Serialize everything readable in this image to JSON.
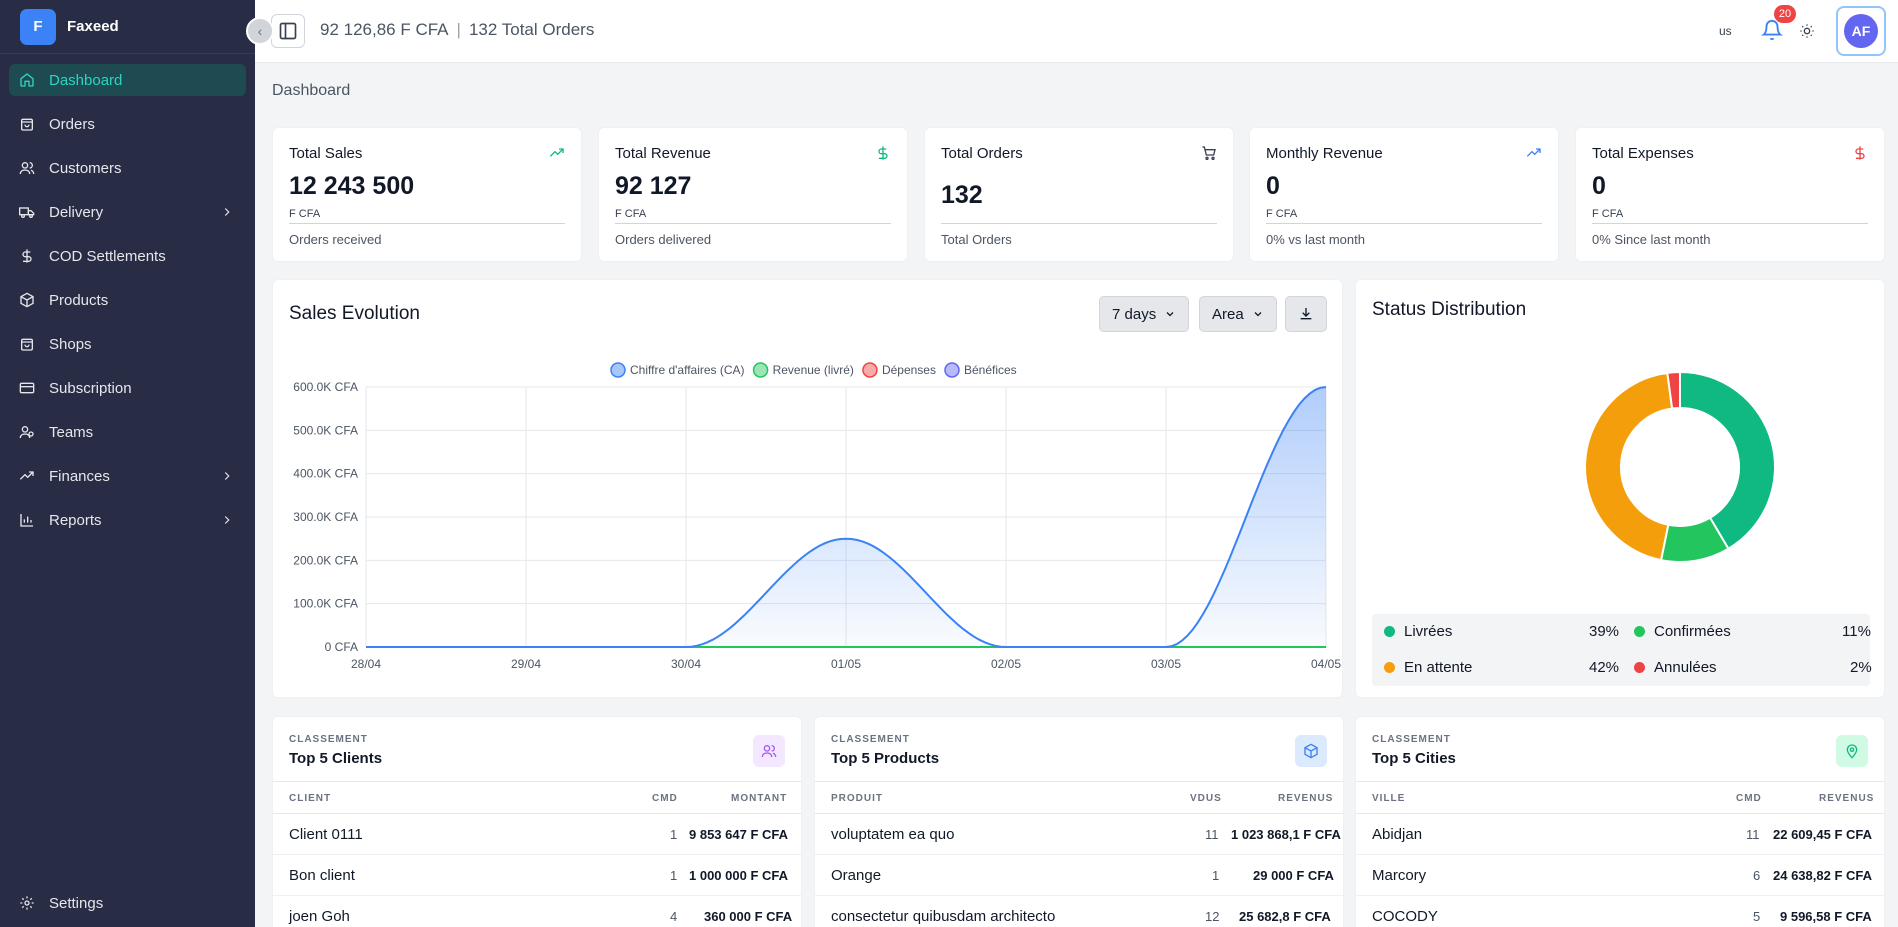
{
  "brand": {
    "logo_letter": "F",
    "name": "Faxeed"
  },
  "sidebar": {
    "items": [
      {
        "label": "Dashboard",
        "icon": "home-icon"
      },
      {
        "label": "Orders",
        "icon": "bag-icon"
      },
      {
        "label": "Customers",
        "icon": "users-icon"
      },
      {
        "label": "Delivery",
        "icon": "truck-icon"
      },
      {
        "label": "COD Settlements",
        "icon": "dollar-icon"
      },
      {
        "label": "Products",
        "icon": "box-icon"
      },
      {
        "label": "Shops",
        "icon": "store-icon"
      },
      {
        "label": "Subscription",
        "icon": "card-icon"
      },
      {
        "label": "Teams",
        "icon": "team-icon"
      },
      {
        "label": "Finances",
        "icon": "trend-icon"
      },
      {
        "label": "Reports",
        "icon": "bar-chart-icon"
      }
    ],
    "settings_label": "Settings"
  },
  "topbar": {
    "amount": "92 126,86 F CFA",
    "orders": "132 Total Orders",
    "lang": "us",
    "notifications": "20",
    "avatar": "AF"
  },
  "page_title": "Dashboard",
  "kpis": [
    {
      "title": "Total Sales",
      "value": "12 243 500",
      "unit": "F CFA",
      "sub": "Orders received",
      "icon": "trend-up-icon",
      "color": "#10b981"
    },
    {
      "title": "Total Revenue",
      "value": "92 127",
      "unit": "F CFA",
      "sub": "Orders delivered",
      "icon": "dollar-icon",
      "color": "#10b981"
    },
    {
      "title": "Total Orders",
      "value": "132",
      "unit": "",
      "sub": "Total Orders",
      "icon": "cart-icon",
      "color": "#374151"
    },
    {
      "title": "Monthly Revenue",
      "value": "0",
      "unit": "F CFA",
      "sub": "0% vs last month",
      "icon": "trend-up-icon",
      "color": "#3b82f6"
    },
    {
      "title": "Total Expenses",
      "value": "0",
      "unit": "F CFA",
      "sub": "0% Since last month",
      "icon": "dollar-icon",
      "color": "#ef4444"
    }
  ],
  "sales": {
    "title": "Sales Evolution",
    "period": "7 days",
    "chart_type_label": "Area"
  },
  "chart_data": {
    "type": "area",
    "categories": [
      "28/04",
      "29/04",
      "30/04",
      "01/05",
      "02/05",
      "03/05",
      "04/05"
    ],
    "series": [
      {
        "name": "Chiffre d'affaires (CA)",
        "values": [
          0,
          0,
          0,
          250000,
          0,
          0,
          600000
        ],
        "color": "#3b82f6"
      },
      {
        "name": "Revenue (livré)",
        "values": [
          0,
          0,
          0,
          0,
          0,
          0,
          0
        ],
        "color": "#22c55e"
      },
      {
        "name": "Dépenses",
        "values": [
          0,
          0,
          0,
          0,
          0,
          0,
          0
        ],
        "color": "#ef4444"
      },
      {
        "name": "Bénéfices",
        "values": [
          0,
          0,
          0,
          0,
          0,
          0,
          0
        ],
        "color": "#6366f1"
      }
    ],
    "y_ticks": [
      "0 CFA",
      "100.0K CFA",
      "200.0K CFA",
      "300.0K CFA",
      "400.0K CFA",
      "500.0K CFA",
      "600.0K CFA"
    ],
    "ylim": [
      0,
      600000
    ],
    "grid": true,
    "legend": "top"
  },
  "status": {
    "title": "Status Distribution",
    "items": [
      {
        "label": "Livrées",
        "pct": "39%",
        "value": 39,
        "color": "#10b981"
      },
      {
        "label": "Confirmées",
        "pct": "11%",
        "value": 11,
        "color": "#22c55e"
      },
      {
        "label": "En attente",
        "pct": "42%",
        "value": 42,
        "color": "#f59e0b"
      },
      {
        "label": "Annulées",
        "pct": "2%",
        "value": 2,
        "color": "#ef4444"
      }
    ]
  },
  "rankings": [
    {
      "label": "CLASSEMENT",
      "title": "Top 5 Clients",
      "icon": "users-icon",
      "icon_color": "#a855f7",
      "icon_bg": "#f3e8ff",
      "headers": [
        "CLIENT",
        "CMD",
        "MONTANT"
      ],
      "rows": [
        {
          "name": "Client 0111",
          "n": "1",
          "amount": "9 853 647 F CFA"
        },
        {
          "name": "Bon client",
          "n": "1",
          "amount": "1 000 000 F CFA"
        },
        {
          "name": "joen Goh",
          "n": "4",
          "amount": "360 000 F CFA"
        }
      ]
    },
    {
      "label": "CLASSEMENT",
      "title": "Top 5 Products",
      "icon": "box-icon",
      "icon_color": "#3b82f6",
      "icon_bg": "#dbeafe",
      "headers": [
        "PRODUIT",
        "VDUS",
        "REVENUS"
      ],
      "rows": [
        {
          "name": "voluptatem ea quo",
          "n": "11",
          "amount": "1 023 868,1 F CFA"
        },
        {
          "name": "Orange",
          "n": "1",
          "amount": "29 000 F CFA"
        },
        {
          "name": "consectetur quibusdam architecto",
          "n": "12",
          "amount": "25 682,8 F CFA"
        }
      ]
    },
    {
      "label": "CLASSEMENT",
      "title": "Top 5 Cities",
      "icon": "map-pin-icon",
      "icon_color": "#10b981",
      "icon_bg": "#d1fae5",
      "headers": [
        "VILLE",
        "CMD",
        "REVENUS"
      ],
      "rows": [
        {
          "name": "Abidjan",
          "n": "11",
          "amount": "22 609,45 F CFA"
        },
        {
          "name": "Marcory",
          "n": "6",
          "amount": "24 638,82 F CFA"
        },
        {
          "name": "COCODY",
          "n": "5",
          "amount": "9 596,58 F CFA"
        }
      ]
    }
  ]
}
